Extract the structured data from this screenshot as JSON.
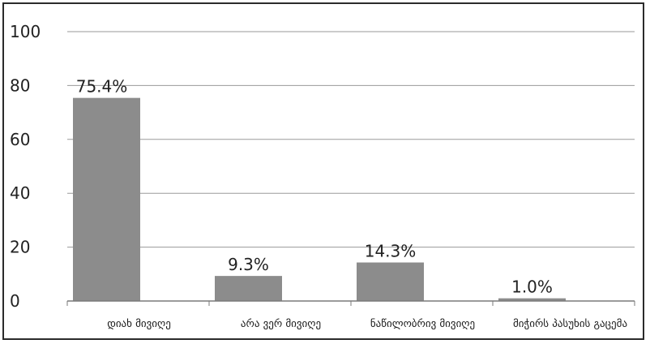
{
  "chart_data": {
    "type": "bar",
    "title": "",
    "xlabel": "",
    "ylabel": "",
    "categories": [
      "დიახ მივიღე",
      "არა ვერ მივიღე",
      "ნაწილობრივ მივიღე",
      "მიჭირს პასუხის გაცემა"
    ],
    "values": [
      75.4,
      9.3,
      14.3,
      1.0
    ],
    "data_labels": [
      "75.4%",
      "9.3%",
      "14.3%",
      "1.0%"
    ],
    "ylim": [
      0,
      100
    ],
    "yticks": [
      "0",
      "20",
      "40",
      "60",
      "80",
      "100"
    ],
    "grid": true,
    "legend": "none",
    "colors": {
      "bar": "#8c8c8c",
      "grid": "#9a9a9a",
      "axis": "#7a7a7a"
    }
  }
}
